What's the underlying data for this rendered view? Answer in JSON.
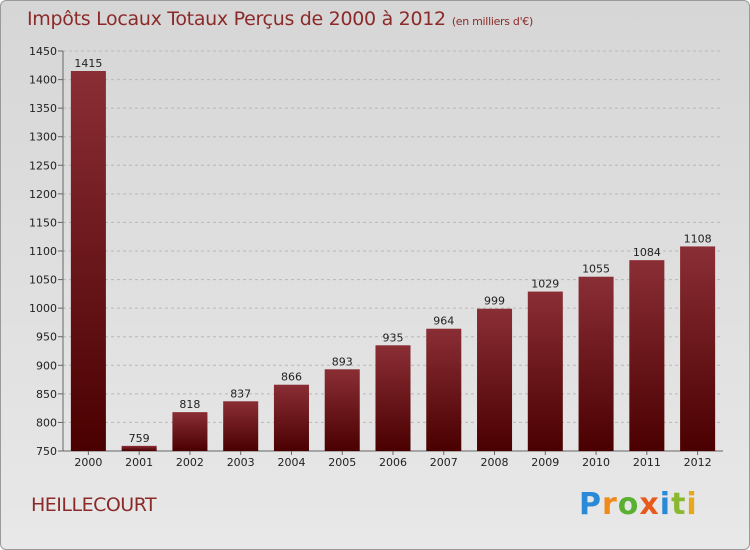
{
  "title": "Impôts Locaux Totaux Perçus de 2000 à 2012",
  "subtitle": "(en milliers d'€)",
  "place": "HEILLECOURT",
  "logo": {
    "c1": "P",
    "c2": "r",
    "c3": "o",
    "c4": "x",
    "c5": "i",
    "c6": "t",
    "c7": "i"
  },
  "colors": {
    "bar_top": "#8a2e35",
    "bar_bottom": "#4a0000",
    "title": "#8c2a2a"
  },
  "chart_data": {
    "type": "bar",
    "title": "Impôts Locaux Totaux Perçus de 2000 à 2012",
    "subtitle": "(en milliers d'€)",
    "xlabel": "",
    "ylabel": "",
    "categories": [
      "2000",
      "2001",
      "2002",
      "2003",
      "2004",
      "2005",
      "2006",
      "2007",
      "2008",
      "2009",
      "2010",
      "2011",
      "2012"
    ],
    "values": [
      1415,
      759,
      818,
      837,
      866,
      893,
      935,
      964,
      999,
      1029,
      1055,
      1084,
      1108
    ],
    "ylim": [
      750,
      1450
    ],
    "yticks": [
      750,
      800,
      850,
      900,
      950,
      1000,
      1050,
      1100,
      1150,
      1200,
      1250,
      1300,
      1350,
      1400,
      1450
    ],
    "grid": true
  }
}
